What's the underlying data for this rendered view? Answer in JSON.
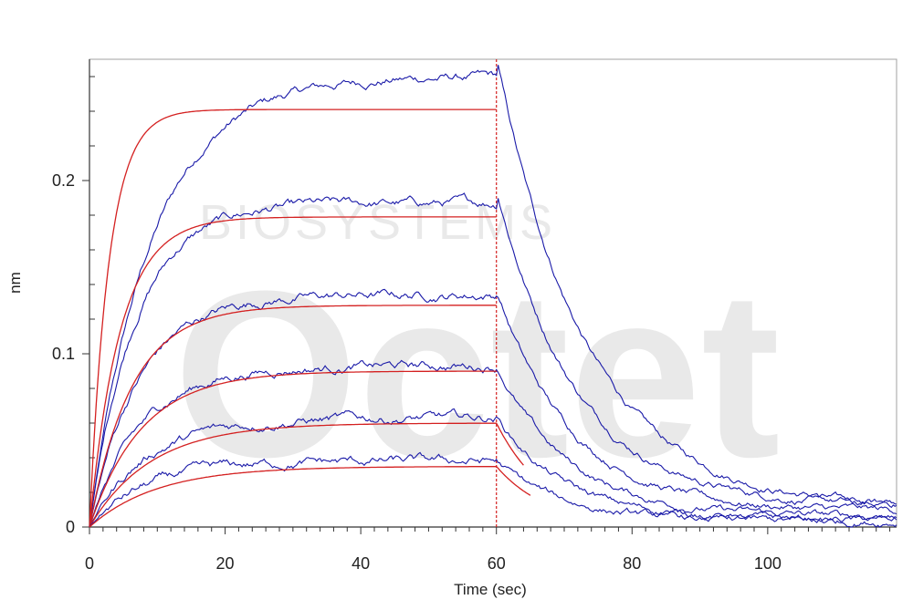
{
  "chart_data": {
    "type": "line",
    "title": "",
    "xlabel": "Time (sec)",
    "ylabel": "nm",
    "xlim": [
      0,
      119
    ],
    "ylim": [
      0,
      0.27
    ],
    "x_ticks": [
      0,
      20,
      40,
      60,
      80,
      100
    ],
    "x_tick_labels": [
      "0",
      "20",
      "40",
      "60",
      "80",
      "100"
    ],
    "y_ticks": [
      0,
      0.1,
      0.2
    ],
    "y_tick_labels": [
      "0",
      "0.1",
      "0.2"
    ],
    "y_minor_step": 0.02,
    "x_minor_step": 2,
    "grid": false,
    "legend": "none",
    "watermark_text": [
      "BIOSYSTEMS",
      "Octet"
    ],
    "association_end": 60,
    "measured_color": "#1a1aa8",
    "fit_color": "#d42020",
    "series": [
      {
        "kind": "measured",
        "assoc_plateau": 0.26,
        "assoc_rate": 0.11,
        "assoc_drift": 0.0,
        "dissoc_start": 0.27,
        "dissoc_floor": 0.01,
        "dissoc_rate": 0.075,
        "fit_plateau": 0.241,
        "fit_rate": 0.35,
        "fit_end": 60
      },
      {
        "kind": "measured",
        "assoc_plateau": 0.187,
        "assoc_rate": 0.15,
        "assoc_drift": 0.0,
        "dissoc_start": 0.196,
        "dissoc_floor": 0.012,
        "dissoc_rate": 0.085,
        "fit_plateau": 0.179,
        "fit_rate": 0.22,
        "fit_end": 60
      },
      {
        "kind": "measured",
        "assoc_plateau": 0.134,
        "assoc_rate": 0.14,
        "assoc_drift": 0.0,
        "dissoc_start": 0.137,
        "dissoc_floor": 0.009,
        "dissoc_rate": 0.09,
        "fit_plateau": 0.128,
        "fit_rate": 0.16,
        "fit_end": 60
      },
      {
        "kind": "measured",
        "assoc_plateau": 0.093,
        "assoc_rate": 0.13,
        "assoc_drift": 0.0,
        "dissoc_start": 0.094,
        "dissoc_floor": 0.006,
        "dissoc_rate": 0.095,
        "fit_plateau": 0.09,
        "fit_rate": 0.13,
        "fit_end": 60
      },
      {
        "kind": "measured",
        "assoc_plateau": 0.063,
        "assoc_rate": 0.12,
        "assoc_drift": 0.0,
        "dissoc_start": 0.064,
        "dissoc_floor": 0.004,
        "dissoc_rate": 0.1,
        "fit_plateau": 0.06,
        "fit_rate": 0.11,
        "fit_end": 64
      },
      {
        "kind": "measured",
        "assoc_plateau": 0.038,
        "assoc_rate": 0.12,
        "assoc_drift": 0.0,
        "dissoc_start": 0.038,
        "dissoc_floor": 0.003,
        "dissoc_rate": 0.1,
        "fit_plateau": 0.035,
        "fit_rate": 0.1,
        "fit_end": 65
      }
    ]
  }
}
